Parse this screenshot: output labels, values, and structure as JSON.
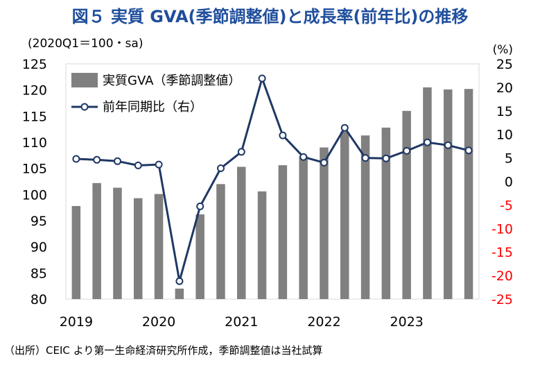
{
  "chart_data": {
    "type": "bar",
    "title": "図５ 実質 GVA(季節調整値)と成長率(前年比)の推移",
    "left_axis_label": "(2020Q1＝100・sa)",
    "right_axis_label": "(%)",
    "categories": [
      "2019Q1",
      "2019Q2",
      "2019Q3",
      "2019Q4",
      "2020Q1",
      "2020Q2",
      "2020Q3",
      "2020Q4",
      "2021Q1",
      "2021Q2",
      "2021Q3",
      "2021Q4",
      "2022Q1",
      "2022Q2",
      "2022Q3",
      "2022Q4",
      "2023Q1",
      "2023Q2",
      "2023Q3",
      "2023Q4"
    ],
    "x_tick_labels": [
      "2019",
      "2020",
      "2021",
      "2022",
      "2023"
    ],
    "ylim_left": [
      80,
      125
    ],
    "yticks_left": [
      125,
      120,
      115,
      110,
      105,
      100,
      95,
      90,
      85,
      80
    ],
    "ylim_right": [
      -25,
      25
    ],
    "yticks_right": [
      25,
      20,
      15,
      10,
      5,
      0,
      -5,
      -10,
      -15,
      -20,
      -25
    ],
    "negative_tick_color": "#ff0000",
    "series": [
      {
        "name": "実質GVA（季節調整値）",
        "axis": "left",
        "kind": "bar",
        "color": "#808080",
        "values": [
          97.8,
          102.2,
          101.3,
          99.3,
          100.1,
          82.0,
          96.2,
          102.0,
          105.3,
          100.6,
          105.6,
          107.3,
          109.0,
          112.0,
          111.3,
          112.8,
          116.0,
          120.5,
          120.1,
          120.2
        ]
      },
      {
        "name": "前年同期比（右）",
        "axis": "right",
        "kind": "line",
        "color": "#1f3864",
        "values": [
          4.8,
          4.6,
          4.3,
          3.4,
          3.6,
          -21.2,
          -5.3,
          2.8,
          6.3,
          21.9,
          9.8,
          5.2,
          4.0,
          11.4,
          5.0,
          4.9,
          6.5,
          8.3,
          7.7,
          6.6
        ]
      }
    ]
  },
  "footnote": "（出所）CEIC より第一生命経済研究所作成，季節調整値は当社試算"
}
